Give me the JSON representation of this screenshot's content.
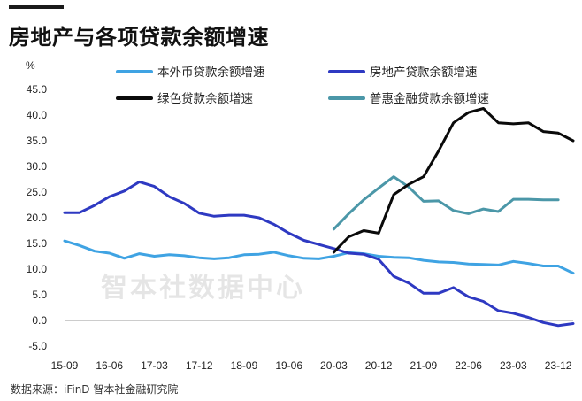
{
  "title": "房地产与各项贷款余额增速",
  "source": "数据来源：iFinD 智本社金融研究院",
  "watermark": "智本社数据中心",
  "chart_data": {
    "type": "line",
    "ylabel": "%",
    "ylim": [
      -5,
      45
    ],
    "yticks": [
      -5,
      0,
      5,
      10,
      15,
      20,
      25,
      30,
      35,
      40,
      45
    ],
    "ytick_labels": [
      "-5.0",
      "0.0",
      "5.0",
      "10.0",
      "15.0",
      "20.0",
      "25.0",
      "30.0",
      "35.0",
      "40.0",
      "45.0"
    ],
    "x_labels": [
      "15-09",
      "16-06",
      "17-03",
      "17-12",
      "18-09",
      "19-06",
      "20-03",
      "20-12",
      "21-09",
      "22-06",
      "23-03",
      "23-12"
    ],
    "grid": false,
    "legend_position": "top",
    "series": [
      {
        "name": "本外币贷款余额增速",
        "color": "#3fa3e3",
        "x": [
          "15-09",
          "15-12",
          "16-03",
          "16-06",
          "16-09",
          "16-12",
          "17-03",
          "17-06",
          "17-09",
          "17-12",
          "18-03",
          "18-06",
          "18-09",
          "18-12",
          "19-03",
          "19-06",
          "19-09",
          "19-12",
          "20-03",
          "20-06",
          "20-09",
          "20-12",
          "21-03",
          "21-06",
          "21-09",
          "21-12",
          "22-03",
          "22-06",
          "22-09",
          "22-12",
          "23-03",
          "23-06",
          "23-09",
          "23-12",
          "24-03"
        ],
        "y": [
          15.5,
          14.6,
          13.5,
          13.1,
          12.1,
          13.0,
          12.5,
          12.8,
          12.6,
          12.2,
          12.0,
          12.2,
          12.8,
          12.9,
          13.3,
          12.6,
          12.1,
          12.0,
          12.5,
          13.2,
          13.0,
          12.5,
          12.3,
          12.2,
          11.7,
          11.4,
          11.3,
          11.0,
          10.9,
          10.8,
          11.5,
          11.1,
          10.6,
          10.6,
          9.2
        ]
      },
      {
        "name": "房地产贷款余额增速",
        "color": "#2e39c2",
        "x": [
          "15-09",
          "15-12",
          "16-03",
          "16-06",
          "16-09",
          "16-12",
          "17-03",
          "17-06",
          "17-09",
          "17-12",
          "18-03",
          "18-06",
          "18-09",
          "18-12",
          "19-03",
          "19-06",
          "19-09",
          "19-12",
          "20-03",
          "20-06",
          "20-09",
          "20-12",
          "21-03",
          "21-06",
          "21-09",
          "21-12",
          "22-03",
          "22-06",
          "22-09",
          "22-12",
          "23-03",
          "23-06",
          "23-09",
          "23-12",
          "24-03"
        ],
        "y": [
          21.0,
          21.0,
          22.4,
          24.1,
          25.2,
          27.0,
          26.1,
          24.1,
          22.8,
          20.9,
          20.3,
          20.5,
          20.5,
          20.0,
          18.7,
          17.0,
          15.6,
          14.8,
          14.0,
          13.1,
          12.9,
          11.9,
          8.6,
          7.3,
          5.3,
          5.3,
          6.4,
          4.6,
          3.7,
          1.9,
          1.4,
          0.6,
          -0.4,
          -1.0,
          -0.6
        ]
      },
      {
        "name": "绿色贷款余额增速",
        "color": "#0a0a0a",
        "x": [
          "20-03",
          "20-06",
          "20-09",
          "20-12",
          "21-03",
          "21-06",
          "21-09",
          "21-12",
          "22-03",
          "22-06",
          "22-09",
          "22-12",
          "23-03",
          "23-06",
          "23-09",
          "23-12",
          "24-03"
        ],
        "y": [
          13.3,
          16.3,
          17.5,
          17.0,
          24.5,
          26.5,
          28.0,
          33.0,
          38.5,
          40.5,
          41.3,
          38.5,
          38.3,
          38.5,
          36.8,
          36.5,
          35.0
        ]
      },
      {
        "name": "普惠金融贷款余额增速",
        "color": "#4b97a8",
        "x": [
          "20-03",
          "20-06",
          "20-09",
          "20-12",
          "21-03",
          "21-06",
          "21-09",
          "21-12",
          "22-03",
          "22-06",
          "22-09",
          "22-12",
          "23-03",
          "23-06",
          "23-09",
          "23-12"
        ],
        "y": [
          17.8,
          20.8,
          23.5,
          25.8,
          28.0,
          26.0,
          23.2,
          23.3,
          21.4,
          20.8,
          21.7,
          21.2,
          23.6,
          23.6,
          23.5,
          23.5
        ]
      }
    ]
  }
}
